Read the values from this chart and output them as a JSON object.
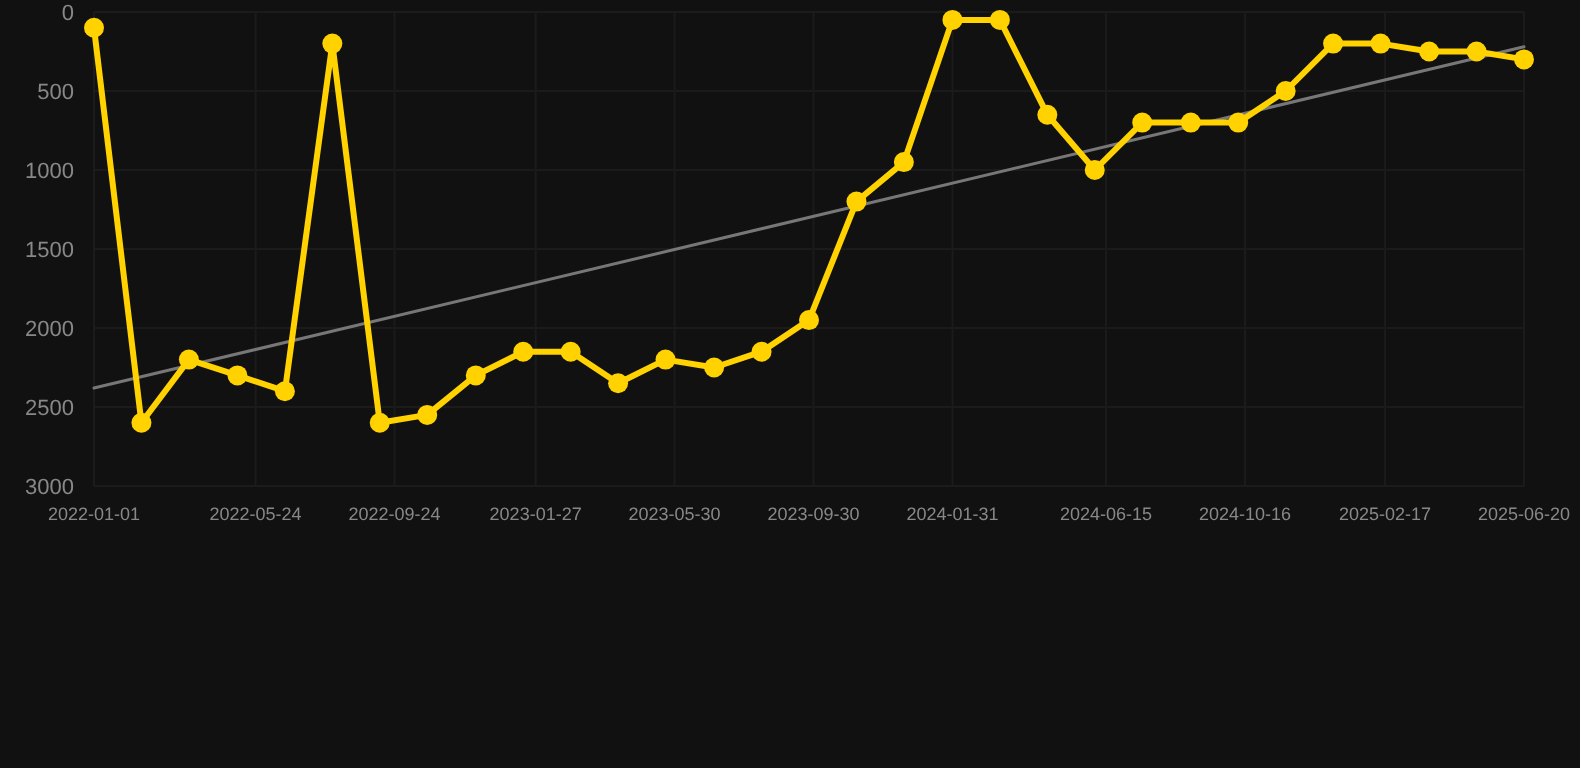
{
  "chart_data": {
    "type": "line",
    "x": [
      "2022-01-01",
      "2022-02-12",
      "2022-03-26",
      "2022-05-08",
      "2022-06-19",
      "2022-07-31",
      "2022-09-11",
      "2022-10-23",
      "2022-12-05",
      "2023-01-16",
      "2023-02-27",
      "2023-04-10",
      "2023-05-22",
      "2023-07-04",
      "2023-08-15",
      "2023-09-26",
      "2023-11-07",
      "2023-12-19",
      "2024-01-31",
      "2024-03-13",
      "2024-04-24",
      "2024-06-05",
      "2024-07-17",
      "2024-08-29",
      "2024-10-10",
      "2024-11-21",
      "2025-01-02",
      "2025-02-13",
      "2025-03-28",
      "2025-05-09",
      "2025-06-20"
    ],
    "series": [
      {
        "color": "#ffd200",
        "marker": "circle",
        "values": [
          100,
          2600,
          2200,
          2300,
          2400,
          200,
          2600,
          2550,
          2300,
          2150,
          2150,
          2350,
          2200,
          2250,
          2150,
          1950,
          1200,
          950,
          50,
          50,
          650,
          1000,
          700,
          700,
          700,
          500,
          200,
          200,
          250,
          250,
          300
        ]
      },
      {
        "type": "line",
        "color": "#777777",
        "marker": "none",
        "x": [
          "2022-01-01",
          "2025-06-20"
        ],
        "values": [
          2380,
          220
        ]
      }
    ],
    "ylim": [
      3000,
      0
    ],
    "yticks": [
      0,
      500,
      1000,
      1500,
      2000,
      2500,
      3000
    ],
    "xlim": [
      "2022-01-01",
      "2025-06-20"
    ],
    "xticks": [
      "2022-01-01",
      "2022-05-24",
      "2022-09-24",
      "2023-01-27",
      "2023-05-30",
      "2023-09-30",
      "2024-01-31",
      "2024-06-15",
      "2024-10-16",
      "2025-02-17",
      "2025-06-20"
    ],
    "grid": true,
    "line_style": "solid"
  }
}
